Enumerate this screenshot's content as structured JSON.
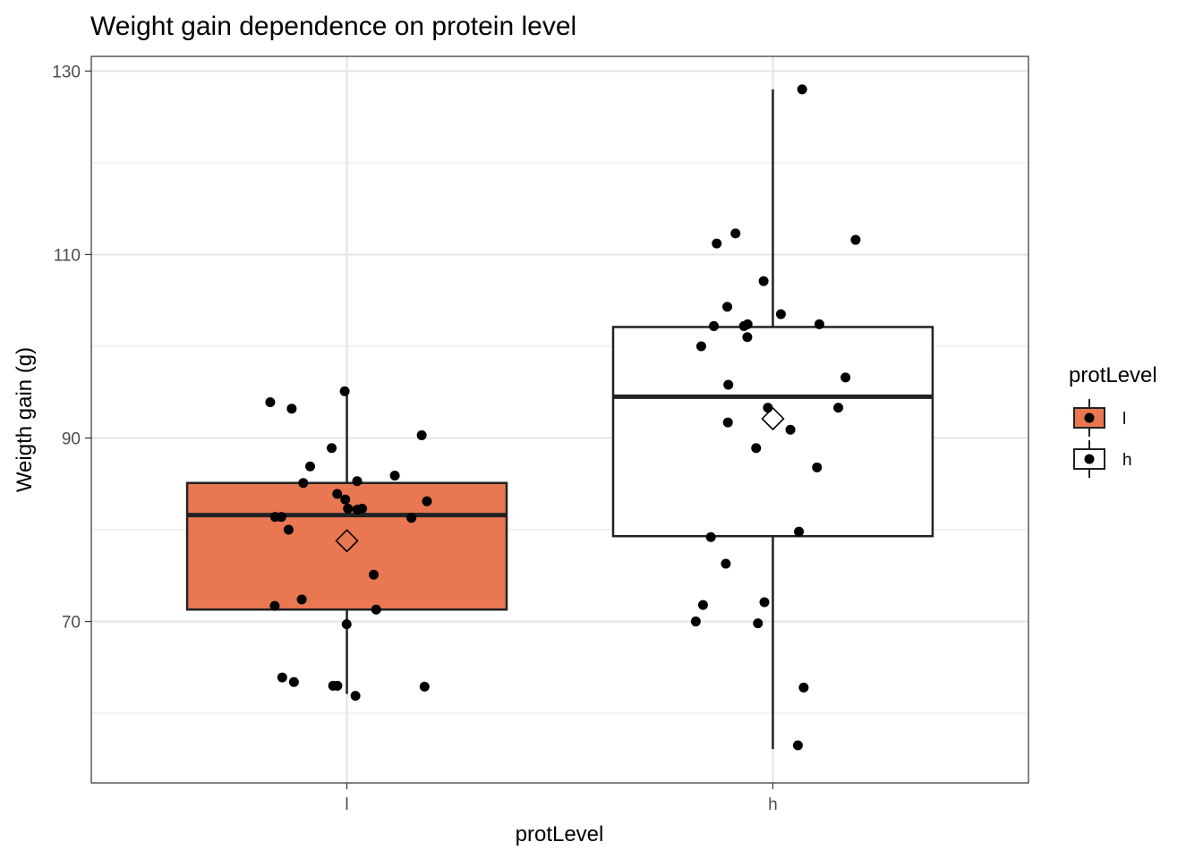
{
  "chart_data": {
    "type": "box",
    "title": "Weight gain dependence on protein level",
    "xlabel": "protLevel",
    "ylabel": "Weigth gain (g)",
    "categories": [
      "l",
      "h"
    ],
    "ylim": [
      52.4,
      131.6
    ],
    "yticks": [
      70,
      90,
      110,
      130
    ],
    "grid": true,
    "legend": {
      "title": "protLevel",
      "placement": "right",
      "entries": [
        {
          "label": "l",
          "fill": "#E97752"
        },
        {
          "label": "h",
          "fill": "#FFFFFF"
        }
      ]
    },
    "boxes": [
      {
        "category": "l",
        "fill": "#E97752",
        "whisker_low": 62.1,
        "q1": 71.3,
        "median": 81.6,
        "q3": 85.1,
        "whisker_high": 95.0,
        "mean": 78.8
      },
      {
        "category": "h",
        "fill": "#FFFFFF",
        "whisker_low": 56.1,
        "q1": 79.3,
        "median": 94.5,
        "q3": 102.1,
        "whisker_high": 128.0,
        "mean": 92.1
      }
    ],
    "points": [
      {
        "category": "l",
        "values": [
          83.3,
          82.2,
          81.4,
          85.1,
          83.9,
          82.3,
          81.4,
          81.3,
          82.3,
          88.9,
          86.9,
          85.9,
          75.1,
          71.7,
          69.7,
          72.4,
          71.3,
          80.0,
          85.3,
          95.1,
          93.2,
          93.9,
          90.3,
          83.1,
          63.9,
          63.0,
          62.9,
          63.4,
          63.0,
          61.9
        ]
      },
      {
        "category": "h",
        "values": [
          128.0,
          112.3,
          111.2,
          111.6,
          107.1,
          104.3,
          103.5,
          102.2,
          102.2,
          102.4,
          102.4,
          101.0,
          100.0,
          96.6,
          95.8,
          93.3,
          93.3,
          91.7,
          90.9,
          88.9,
          86.8,
          79.8,
          79.2,
          76.3,
          72.1,
          71.8,
          70.0,
          69.8,
          62.8,
          56.5
        ]
      }
    ]
  }
}
